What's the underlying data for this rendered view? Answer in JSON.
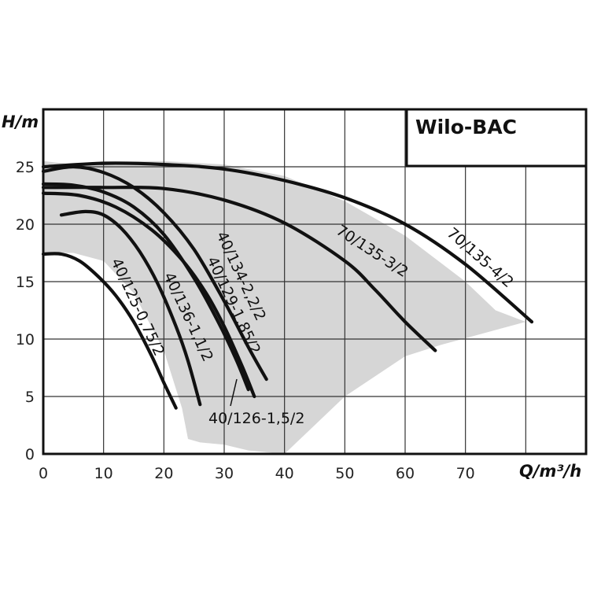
{
  "chart_data": {
    "type": "line",
    "title": "Wilo-BAC",
    "xlabel": "Q/m³/h",
    "ylabel": "H/m",
    "xlim": [
      0,
      90
    ],
    "ylim": [
      0,
      30
    ],
    "xticks": [
      0,
      10,
      20,
      30,
      40,
      50,
      60,
      70
    ],
    "yticks": [
      0,
      5,
      10,
      15,
      20,
      25
    ],
    "grid": true,
    "envelope": {
      "description_visible": false,
      "points": [
        [
          0,
          25.5
        ],
        [
          5,
          25.2
        ],
        [
          10,
          25.5
        ],
        [
          20,
          25.5
        ],
        [
          30,
          25.2
        ],
        [
          40,
          24.2
        ],
        [
          50,
          22
        ],
        [
          60,
          19
        ],
        [
          70,
          15
        ],
        [
          75,
          12.5
        ],
        [
          80,
          11.5
        ],
        [
          66,
          9.5
        ],
        [
          60,
          8.5
        ],
        [
          50,
          5
        ],
        [
          40,
          0
        ],
        [
          34,
          0.3
        ],
        [
          30,
          0.8
        ],
        [
          26,
          1
        ],
        [
          24,
          1.3
        ],
        [
          23,
          4
        ],
        [
          20,
          9
        ],
        [
          15,
          14
        ],
        [
          10,
          16.8
        ],
        [
          5,
          17.5
        ],
        [
          0,
          17.5
        ]
      ]
    },
    "series": [
      {
        "name": "40/125-0,75/2",
        "x": [
          0,
          3,
          6,
          9,
          12,
          15,
          18,
          20,
          22
        ],
        "y": [
          17.4,
          17.4,
          16.8,
          15.5,
          13.8,
          11.5,
          8.5,
          6.2,
          4
        ]
      },
      {
        "name": "40/136-1,1/2",
        "x": [
          3,
          7,
          10,
          13,
          16,
          19,
          22,
          24,
          26
        ],
        "y": [
          20.8,
          21.1,
          20.8,
          19.6,
          17.6,
          14.8,
          11.1,
          8.1,
          4.3
        ]
      },
      {
        "name": "40/126-1,5/2",
        "x": [
          0,
          6,
          12,
          18,
          23,
          27,
          30,
          33,
          35
        ],
        "y": [
          22.7,
          22.5,
          21.5,
          19.5,
          16.9,
          14,
          11.1,
          7.6,
          5
        ]
      },
      {
        "name": "40/129-1,85/2",
        "x": [
          0,
          5,
          10,
          15,
          20,
          25,
          29,
          32,
          34
        ],
        "y": [
          23.5,
          23.4,
          22.8,
          21.5,
          19.1,
          15.3,
          11.5,
          8.2,
          5.6
        ]
      },
      {
        "name": "40/134-2,2/2",
        "x": [
          0,
          5,
          10,
          15,
          20,
          25,
          30,
          34,
          37
        ],
        "y": [
          24.6,
          25,
          24.5,
          23.2,
          21,
          17.8,
          13.3,
          9.3,
          6.5
        ]
      },
      {
        "name": "70/135-3/2",
        "x": [
          0,
          10,
          20,
          30,
          40,
          50,
          55,
          60,
          65
        ],
        "y": [
          23.2,
          23.2,
          23.1,
          22.1,
          20.1,
          16.8,
          14.3,
          11.5,
          9
        ]
      },
      {
        "name": "70/135-4/2",
        "x": [
          0,
          10,
          20,
          30,
          40,
          50,
          60,
          70,
          81
        ],
        "y": [
          25,
          25.3,
          25.2,
          24.8,
          23.8,
          22.3,
          20,
          16.5,
          11.5
        ]
      }
    ]
  }
}
